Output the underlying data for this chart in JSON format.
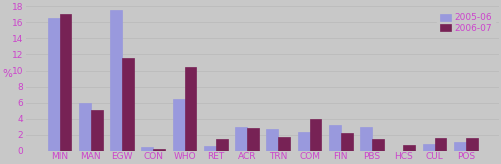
{
  "categories": [
    "MIN",
    "MAN",
    "EGW",
    "CON",
    "WHO",
    "RET",
    "ACR",
    "TRN",
    "COM",
    "FIN",
    "PBS",
    "HCS",
    "CUL",
    "POS"
  ],
  "values_2005": [
    16.5,
    5.9,
    17.5,
    0.5,
    6.5,
    0.6,
    3.0,
    2.7,
    2.3,
    3.2,
    3.0,
    0.0,
    0.9,
    1.1
  ],
  "values_2006": [
    17.0,
    5.1,
    11.5,
    0.2,
    10.4,
    1.5,
    2.8,
    1.7,
    4.0,
    2.2,
    1.5,
    0.7,
    1.6,
    1.6
  ],
  "color_2005": "#9999dd",
  "color_2006": "#772255",
  "legend_2005": "2005-06",
  "legend_2006": "2006-07",
  "ylabel": "%",
  "ylim": [
    0,
    18
  ],
  "yticks": [
    0,
    2,
    4,
    6,
    8,
    10,
    12,
    14,
    16,
    18
  ],
  "background_color": "#c8c8c8",
  "grid_color": "#bbbbbb",
  "tick_label_color": "#cc44cc",
  "legend_fontsize": 6.5,
  "tick_fontsize": 6.5,
  "ylabel_fontsize": 7.5,
  "bar_width": 0.38
}
